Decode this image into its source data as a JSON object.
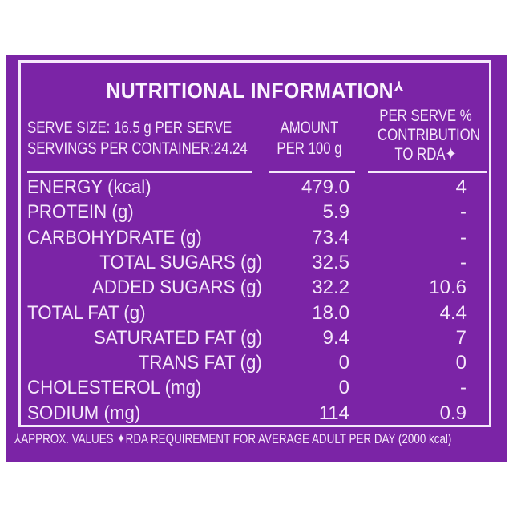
{
  "label": {
    "title": "NUTRITIONAL INFORMATION",
    "title_mark": "⅄",
    "serve_size": "SERVE SIZE: 16.5 g PER SERVE",
    "servings_per_container": "SERVINGS PER CONTAINER:24.24",
    "columns": {
      "amount_line1": "AMOUNT",
      "amount_line2": "PER 100 g",
      "rda_line1": "PER SERVE %",
      "rda_line2": "CONTRIBUTION",
      "rda_line3": "TO RDA✦"
    },
    "rows": [
      {
        "label": "ENERGY (kcal)",
        "indent": 0,
        "amount": "479.0",
        "rda": "4"
      },
      {
        "label": "PROTEIN (g)",
        "indent": 0,
        "amount": "5.9",
        "rda": "-"
      },
      {
        "label": "CARBOHYDRATE (g)",
        "indent": 0,
        "amount": "73.4",
        "rda": "-"
      },
      {
        "label": "TOTAL SUGARS (g)",
        "indent": 1,
        "amount": "32.5",
        "rda": "-"
      },
      {
        "label": "ADDED SUGARS (g)",
        "indent": 1,
        "amount": "32.2",
        "rda": "10.6"
      },
      {
        "label": "TOTAL FAT (g)",
        "indent": 0,
        "amount": "18.0",
        "rda": "4.4"
      },
      {
        "label": "SATURATED FAT (g)",
        "indent": 1,
        "amount": "9.4",
        "rda": "7"
      },
      {
        "label": "TRANS FAT (g)",
        "indent": 2,
        "amount": "0",
        "rda": "0"
      },
      {
        "label": "CHOLESTEROL (mg)",
        "indent": 0,
        "amount": "0",
        "rda": "-"
      },
      {
        "label": "SODIUM (mg)",
        "indent": 0,
        "amount": "114",
        "rda": "0.9"
      }
    ],
    "footnote": "⅄APPROX. VALUES ✦RDA REQUIREMENT FOR AVERAGE ADULT PER DAY (2000 kcal)"
  },
  "colors": {
    "background": "#7b24a6",
    "text": "#f6e8fb"
  }
}
